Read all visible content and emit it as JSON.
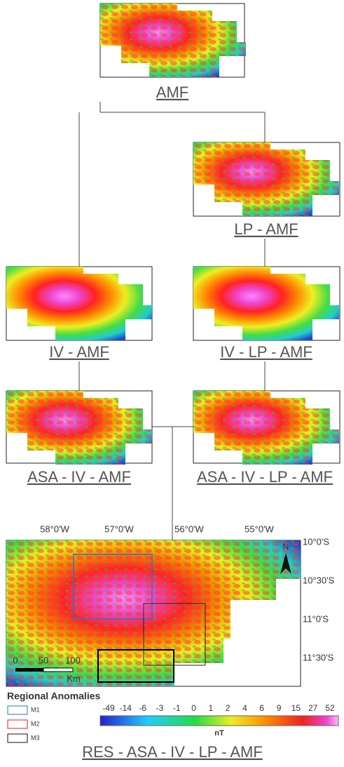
{
  "panels": [
    {
      "label": "AMF"
    },
    {
      "label": "LP - AMF"
    },
    {
      "label": "IV - AMF"
    },
    {
      "label": "IV - LP - AMF"
    },
    {
      "label": "ASA - IV - AMF"
    },
    {
      "label": "ASA - IV - LP - AMF"
    }
  ],
  "result": {
    "label": "RES - ASA - IV - LP - AMF",
    "lon_labels": [
      "58°0'W",
      "57°0'W",
      "56°0'W",
      "55°0'W"
    ],
    "lat_labels": [
      "10°0'S",
      "10°30'S",
      "11°0'S",
      "11°30'S"
    ],
    "north": "N",
    "scale": [
      "0",
      "50",
      "100"
    ],
    "scale_unit": "Km"
  },
  "legend": {
    "title": "Regional Anomalies",
    "items": [
      "M1",
      "M2",
      "M3"
    ]
  },
  "colorbar": {
    "labels": [
      -49,
      -14,
      -6,
      -3,
      -1,
      0,
      1,
      2,
      4,
      6,
      9,
      15,
      27,
      52
    ],
    "unit": "nT"
  }
}
